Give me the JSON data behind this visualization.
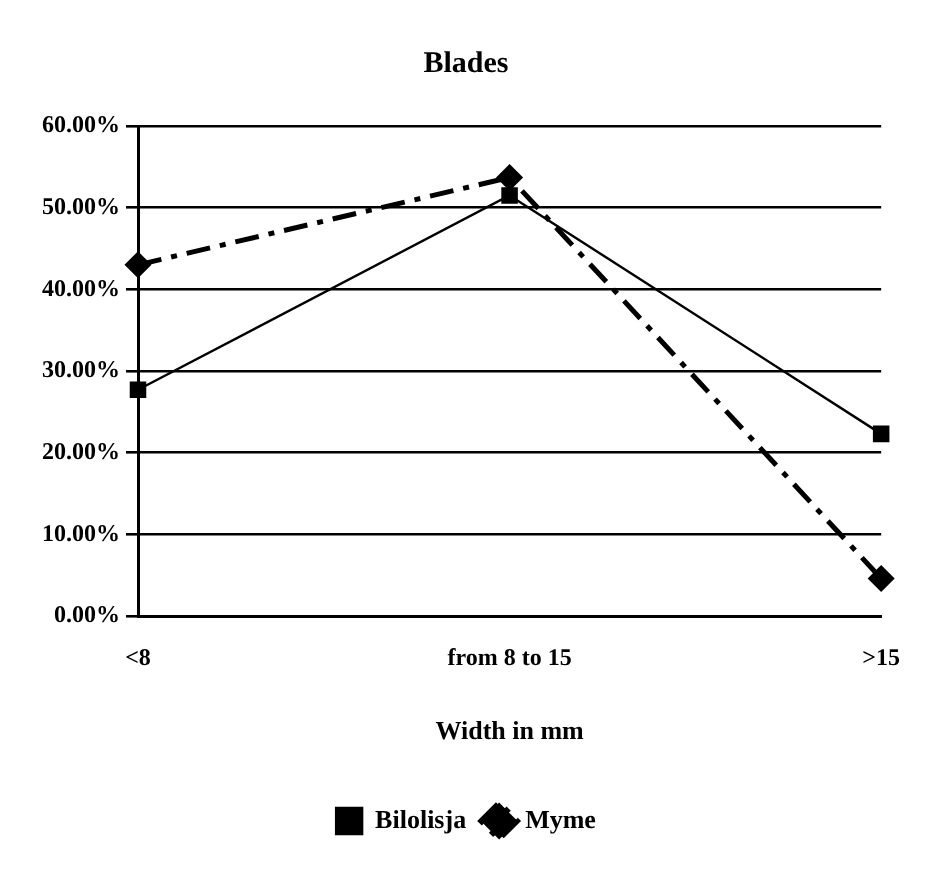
{
  "chart_data": {
    "type": "line",
    "title": "Blades",
    "xlabel": "Width in mm",
    "categories": [
      "<8",
      "from 8 to 15",
      ">15"
    ],
    "series": [
      {
        "name": "Bilolisja",
        "color": "#000000",
        "values": [
          27.7,
          51.5,
          22.3
        ],
        "marker": "square",
        "line_style": "solid"
      },
      {
        "name": "Myme",
        "color": "#000000",
        "values": [
          43.0,
          53.7,
          4.6
        ],
        "marker": "diamond",
        "line_style": "dashed"
      }
    ],
    "ylim": [
      0,
      60
    ],
    "yticks": [
      {
        "value": 0,
        "label": "0.00%"
      },
      {
        "value": 10,
        "label": "10.00%"
      },
      {
        "value": 20,
        "label": "20.00%"
      },
      {
        "value": 30,
        "label": "30.00%"
      },
      {
        "value": 40,
        "label": "40.00%"
      },
      {
        "value": 50,
        "label": "50.00%"
      },
      {
        "value": 60,
        "label": "60.00%"
      }
    ],
    "grid": "y",
    "legend": "bottom"
  }
}
